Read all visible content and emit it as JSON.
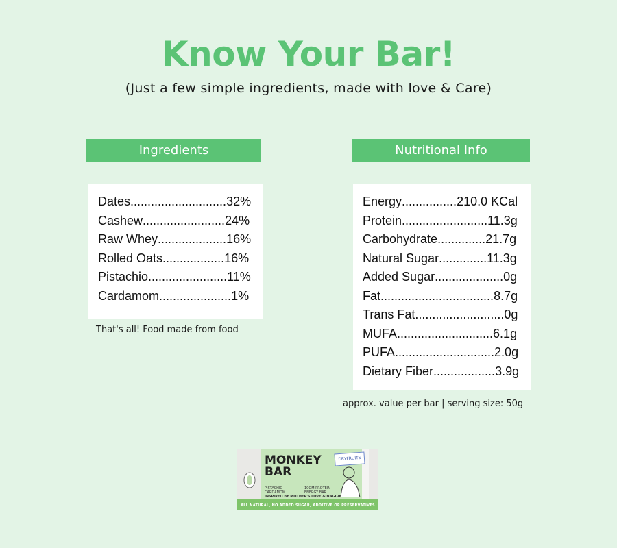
{
  "title": "Know Your Bar!",
  "subtitle": "(Just a few simple ingredients, made with love & Care)",
  "ingredients": {
    "header": "Ingredients",
    "items": [
      {
        "name": "Dates",
        "value": "32%"
      },
      {
        "name": "Cashew",
        "value": "24%"
      },
      {
        "name": "Raw Whey",
        "value": "16%"
      },
      {
        "name": "Rolled Oats",
        "value": "16%"
      },
      {
        "name": "Pistachio",
        "value": "11%"
      },
      {
        "name": "Cardamom",
        "value": "1%"
      }
    ],
    "note": "That's all! Food made from food"
  },
  "nutrition": {
    "header": "Nutritional Info",
    "items": [
      {
        "name": "Energy",
        "value": "210.0 KCal"
      },
      {
        "name": "Protein",
        "value": "11.3g"
      },
      {
        "name": "Carbohydrate",
        "value": "21.7g"
      },
      {
        "name": "Natural Sugar",
        "value": "11.3g"
      },
      {
        "name": "Added Sugar",
        "value": "0g"
      },
      {
        "name": "Fat",
        "value": "8.7g"
      },
      {
        "name": "Trans Fat",
        "value": "0g"
      },
      {
        "name": "MUFA",
        "value": "6.1g"
      },
      {
        "name": "PUFA",
        "value": "2.0g"
      },
      {
        "name": "Dietary Fiber",
        "value": "3.9g"
      }
    ],
    "note": "approx. value per bar | serving size: 50g"
  },
  "product": {
    "brand_line1": "MONKEY",
    "brand_line2": "BAR",
    "badge": "DRYFRUITS",
    "flavor_line1": "PISTACHIO",
    "flavor_line2": "CARDAMOM",
    "type_line1": "10GM PROTEIN",
    "type_line2": "ENERGY BAR",
    "tagline": "INSPIRED BY MOTHER'S LOVE & NAGGING",
    "bottom_text": "ALL NATURAL, NO ADDED SUGAR, ADDITIVE OR PRESERVATIVES"
  },
  "colors": {
    "background": "#e3f4e6",
    "accent": "#5bc375"
  }
}
